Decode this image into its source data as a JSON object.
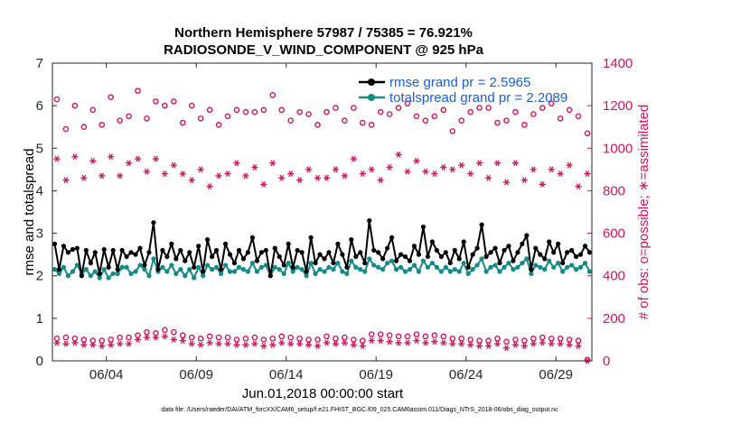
{
  "chart_data": {
    "type": "line",
    "title": "Northern Hemisphere 57987 / 75385 = 76.921%",
    "subtitle": "RADIOSONDE_V_WIND_COMPONENT @ 925 hPa",
    "xlabel": "Jun.01,2018 00:00:00 start",
    "ylabel": "rmse and totalspread",
    "ylabel_right": "# of obs: o=possible; ∗=assimilated",
    "footer": "data file: /Users/raeder/DAI/ATM_forcXX/CAM6_setup/f.e21.FHIST_BGC.f09_025.CAM6assim.011/Diags_NTrS_2018-06/obs_diag_output.nc",
    "xlim": [
      0,
      60
    ],
    "ylim": [
      0,
      7
    ],
    "ylim_right": [
      0,
      1400
    ],
    "x_tick_positions": [
      6,
      16,
      26,
      36,
      46,
      56
    ],
    "x_tick_labels": [
      "06/04",
      "06/09",
      "06/14",
      "06/19",
      "06/24",
      "06/29"
    ],
    "y_tick_labels": [
      "0",
      "1",
      "2",
      "3",
      "4",
      "5",
      "6",
      "7"
    ],
    "y_right_tick_labels": [
      "0",
      "200",
      "400",
      "600",
      "800",
      "1000",
      "1200",
      "1400"
    ],
    "legend": [
      "rmse grand pr = 2.5965",
      "totalspread grand pr = 2.2089"
    ],
    "colors": {
      "rmse": "#000000",
      "spread": "#138a87",
      "obs": "#d4145a",
      "legend_text": "#1a5fd6"
    },
    "series": [
      {
        "name": "rmse",
        "axis": "left",
        "values": [
          2.75,
          2.15,
          2.7,
          2.55,
          2.62,
          2.65,
          2.0,
          2.6,
          2.3,
          2.55,
          2.05,
          2.62,
          2.2,
          2.6,
          2.15,
          2.6,
          2.45,
          2.55,
          2.5,
          2.65,
          2.25,
          2.55,
          3.25,
          2.15,
          2.6,
          2.45,
          2.75,
          2.4,
          2.6,
          2.35,
          2.55,
          2.2,
          2.7,
          2.1,
          2.85,
          2.45,
          2.6,
          2.15,
          2.75,
          2.5,
          2.3,
          2.6,
          2.4,
          2.55,
          2.9,
          2.35,
          2.55,
          2.6,
          2.0,
          2.65,
          2.45,
          2.25,
          2.75,
          2.2,
          2.6,
          2.55,
          2.1,
          2.9,
          2.3,
          2.5,
          2.4,
          2.55,
          2.3,
          2.75,
          2.5,
          2.2,
          2.85,
          2.45,
          2.55,
          2.3,
          3.3,
          2.6,
          2.55,
          2.4,
          2.65,
          2.9,
          2.35,
          2.5,
          2.45,
          2.35,
          2.7,
          2.5,
          3.15,
          2.45,
          2.8,
          2.6,
          2.45,
          2.55,
          2.3,
          2.6,
          2.4,
          2.8,
          2.2,
          2.5,
          2.65,
          3.2,
          2.45,
          2.55,
          2.65,
          2.3,
          2.6,
          2.7,
          2.35,
          2.55,
          2.75,
          2.95,
          2.15,
          2.65,
          2.5,
          2.4,
          2.8,
          2.55,
          2.75,
          2.3,
          2.55,
          2.6,
          2.45,
          2.5,
          2.7,
          2.55
        ]
      },
      {
        "name": "totalspread",
        "axis": "left",
        "values": [
          2.15,
          2.05,
          2.2,
          2.0,
          2.1,
          2.25,
          2.05,
          2.15,
          2.0,
          2.1,
          1.95,
          2.15,
          1.95,
          2.05,
          2.05,
          2.2,
          2.2,
          2.05,
          2.1,
          2.25,
          2.15,
          2.0,
          2.4,
          2.1,
          2.2,
          2.1,
          2.25,
          2.05,
          2.15,
          2.0,
          2.15,
          1.95,
          2.2,
          2.0,
          2.25,
          2.15,
          2.2,
          2.05,
          2.25,
          2.1,
          2.1,
          2.2,
          2.15,
          2.1,
          2.3,
          2.1,
          2.2,
          2.25,
          2.0,
          2.2,
          2.15,
          2.05,
          2.3,
          2.1,
          2.2,
          2.15,
          2.0,
          2.3,
          2.05,
          2.15,
          2.1,
          2.2,
          2.15,
          2.3,
          2.1,
          2.05,
          2.35,
          2.2,
          2.15,
          2.1,
          2.4,
          2.25,
          2.2,
          2.15,
          2.3,
          2.35,
          2.15,
          2.2,
          2.1,
          2.15,
          2.25,
          2.1,
          2.35,
          2.2,
          2.3,
          2.2,
          2.1,
          2.2,
          2.1,
          2.15,
          2.1,
          2.3,
          2.05,
          2.15,
          2.25,
          2.4,
          2.1,
          2.2,
          2.25,
          2.1,
          2.2,
          2.3,
          2.15,
          2.2,
          2.3,
          2.4,
          2.05,
          2.25,
          2.2,
          2.15,
          2.35,
          2.2,
          2.3,
          2.1,
          2.2,
          2.25,
          2.15,
          2.2,
          2.3,
          2.1
        ]
      },
      {
        "name": "possible (high)",
        "axis": "right",
        "marker": "o",
        "values": [
          1230,
          1090,
          1200,
          1100,
          1180,
          1110,
          1240,
          1130,
          1150,
          1270,
          1140,
          1220,
          1200,
          1220,
          1120,
          1200,
          1140,
          1180,
          1110,
          1150,
          1180,
          1170,
          1170,
          1180,
          1250,
          1180,
          1130,
          1170,
          1160,
          1110,
          1170,
          1190,
          1130,
          1190,
          1120,
          1110,
          1170,
          1160,
          1190,
          1210,
          1150,
          1130,
          1150,
          1180,
          1080,
          1130,
          1170,
          1190,
          1190,
          1120,
          1130,
          1170,
          1110,
          1160,
          1190,
          1210,
          1140,
          1180,
          1150,
          1070
        ]
      },
      {
        "name": "possible (low)",
        "axis": "right",
        "marker": "o",
        "values": [
          105,
          110,
          105,
          100,
          95,
          95,
          100,
          110,
          110,
          120,
          135,
          130,
          145,
          135,
          120,
          110,
          105,
          115,
          110,
          110,
          100,
          105,
          110,
          100,
          105,
          115,
          110,
          105,
          100,
          100,
          115,
          105,
          110,
          100,
          95,
          125,
          125,
          120,
          115,
          115,
          125,
          115,
          120,
          115,
          105,
          105,
          100,
          95,
          95,
          105,
          90,
          100,
          95,
          105,
          110,
          105,
          105,
          100,
          95,
          5
        ]
      },
      {
        "name": "assimilated (high)",
        "axis": "right",
        "marker": "*",
        "values": [
          950,
          850,
          960,
          860,
          940,
          870,
          960,
          870,
          930,
          950,
          890,
          950,
          880,
          920,
          880,
          850,
          900,
          820,
          870,
          880,
          930,
          870,
          910,
          830,
          930,
          860,
          880,
          850,
          900,
          860,
          860,
          900,
          870,
          950,
          880,
          900,
          850,
          910,
          970,
          890,
          940,
          890,
          880,
          910,
          900,
          920,
          880,
          930,
          860,
          930,
          840,
          930,
          850,
          900,
          830,
          900,
          880,
          920,
          820,
          880
        ]
      },
      {
        "name": "assimilated (low)",
        "axis": "right",
        "marker": "*",
        "values": [
          85,
          80,
          85,
          75,
          75,
          70,
          75,
          80,
          80,
          100,
          110,
          110,
          115,
          100,
          95,
          80,
          75,
          85,
          80,
          80,
          75,
          75,
          80,
          70,
          75,
          85,
          80,
          80,
          75,
          70,
          85,
          80,
          85,
          75,
          70,
          95,
          95,
          90,
          85,
          85,
          95,
          85,
          90,
          85,
          80,
          80,
          75,
          70,
          70,
          80,
          60,
          75,
          70,
          80,
          85,
          80,
          80,
          75,
          70,
          0
        ]
      }
    ]
  }
}
